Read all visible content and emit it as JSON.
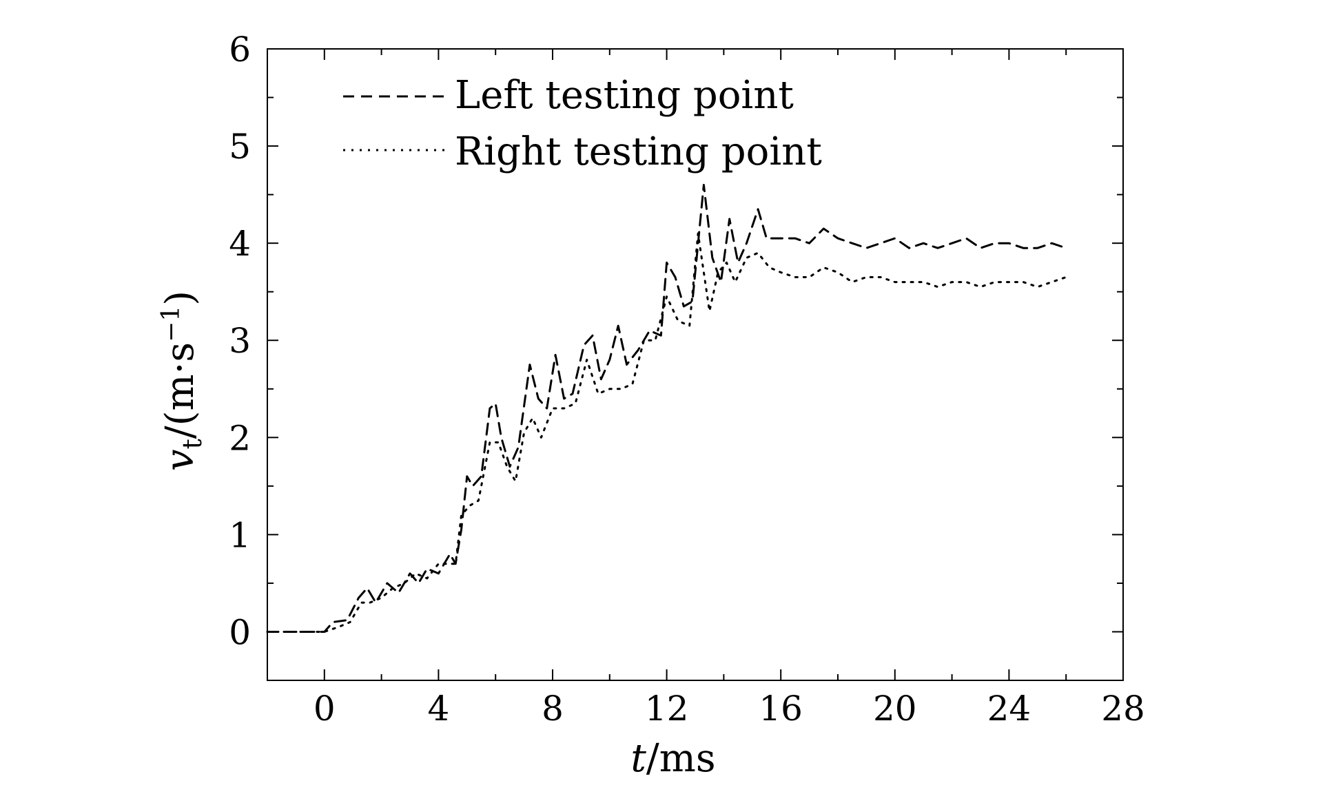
{
  "chart_data": {
    "type": "line",
    "xlabel": {
      "var": "t",
      "unit": "/ms"
    },
    "ylabel": {
      "var": "v",
      "sub": "t",
      "unit_pre": "/(m·s",
      "sup": "−1",
      "unit_post": ")"
    },
    "xlim": [
      -2.0,
      28
    ],
    "ylim": [
      -0.5,
      6
    ],
    "xticks": [
      0,
      4,
      8,
      12,
      16,
      20,
      24,
      28
    ],
    "yticks": [
      0,
      1,
      2,
      3,
      4,
      5,
      6
    ],
    "grid": false,
    "legend_position": "top-left",
    "series": [
      {
        "name": "Left testing point",
        "style": "dashed",
        "color": "#000000",
        "points": [
          [
            -2.0,
            0
          ],
          [
            0,
            0
          ],
          [
            0.3,
            0.1
          ],
          [
            0.8,
            0.12
          ],
          [
            1.2,
            0.35
          ],
          [
            1.5,
            0.45
          ],
          [
            1.8,
            0.3
          ],
          [
            2.2,
            0.5
          ],
          [
            2.6,
            0.4
          ],
          [
            3.0,
            0.6
          ],
          [
            3.3,
            0.5
          ],
          [
            3.6,
            0.65
          ],
          [
            4.0,
            0.6
          ],
          [
            4.4,
            0.8
          ],
          [
            4.6,
            0.7
          ],
          [
            4.8,
            1.05
          ],
          [
            5.0,
            1.6
          ],
          [
            5.2,
            1.5
          ],
          [
            5.5,
            1.6
          ],
          [
            5.8,
            2.3
          ],
          [
            6.0,
            2.35
          ],
          [
            6.2,
            2.0
          ],
          [
            6.5,
            1.7
          ],
          [
            6.8,
            1.9
          ],
          [
            7.2,
            2.75
          ],
          [
            7.5,
            2.4
          ],
          [
            7.8,
            2.3
          ],
          [
            8.1,
            2.85
          ],
          [
            8.4,
            2.4
          ],
          [
            8.7,
            2.45
          ],
          [
            9.1,
            2.95
          ],
          [
            9.4,
            3.05
          ],
          [
            9.7,
            2.6
          ],
          [
            10.0,
            2.8
          ],
          [
            10.3,
            3.15
          ],
          [
            10.6,
            2.75
          ],
          [
            11.0,
            2.9
          ],
          [
            11.4,
            3.1
          ],
          [
            11.8,
            3.05
          ],
          [
            12.0,
            3.8
          ],
          [
            12.3,
            3.65
          ],
          [
            12.6,
            3.35
          ],
          [
            12.9,
            3.4
          ],
          [
            13.3,
            4.6
          ],
          [
            13.6,
            3.85
          ],
          [
            13.9,
            3.6
          ],
          [
            14.2,
            4.25
          ],
          [
            14.5,
            3.8
          ],
          [
            14.8,
            4.0
          ],
          [
            15.2,
            4.35
          ],
          [
            15.5,
            4.05
          ],
          [
            16.0,
            4.05
          ],
          [
            16.5,
            4.05
          ],
          [
            17.0,
            4.0
          ],
          [
            17.5,
            4.15
          ],
          [
            18.0,
            4.05
          ],
          [
            18.5,
            4.0
          ],
          [
            19.0,
            3.95
          ],
          [
            19.5,
            4.0
          ],
          [
            20.0,
            4.05
          ],
          [
            20.5,
            3.95
          ],
          [
            21.0,
            4.0
          ],
          [
            21.5,
            3.95
          ],
          [
            22.0,
            4.0
          ],
          [
            22.5,
            4.05
          ],
          [
            23.0,
            3.95
          ],
          [
            23.5,
            4.0
          ],
          [
            24.0,
            4.0
          ],
          [
            24.5,
            3.95
          ],
          [
            25.0,
            3.95
          ],
          [
            25.5,
            4.0
          ],
          [
            26.0,
            3.95
          ]
        ]
      },
      {
        "name": "Right testing point",
        "style": "dotted",
        "color": "#000000",
        "points": [
          [
            -2.0,
            0
          ],
          [
            0,
            0
          ],
          [
            0.5,
            0.05
          ],
          [
            0.9,
            0.1
          ],
          [
            1.3,
            0.3
          ],
          [
            1.6,
            0.3
          ],
          [
            2.0,
            0.35
          ],
          [
            2.4,
            0.45
          ],
          [
            2.8,
            0.5
          ],
          [
            3.2,
            0.6
          ],
          [
            3.6,
            0.55
          ],
          [
            4.0,
            0.7
          ],
          [
            4.4,
            0.7
          ],
          [
            4.6,
            0.7
          ],
          [
            4.8,
            1.2
          ],
          [
            5.1,
            1.3
          ],
          [
            5.4,
            1.35
          ],
          [
            5.8,
            1.95
          ],
          [
            6.1,
            1.95
          ],
          [
            6.4,
            1.7
          ],
          [
            6.7,
            1.55
          ],
          [
            7.0,
            2.05
          ],
          [
            7.3,
            2.2
          ],
          [
            7.6,
            2.0
          ],
          [
            8.0,
            2.3
          ],
          [
            8.4,
            2.3
          ],
          [
            8.8,
            2.35
          ],
          [
            9.2,
            2.8
          ],
          [
            9.6,
            2.45
          ],
          [
            10.0,
            2.5
          ],
          [
            10.4,
            2.5
          ],
          [
            10.8,
            2.55
          ],
          [
            11.2,
            3.0
          ],
          [
            11.6,
            3.0
          ],
          [
            12.0,
            3.45
          ],
          [
            12.4,
            3.2
          ],
          [
            12.8,
            3.15
          ],
          [
            13.1,
            4.1
          ],
          [
            13.5,
            3.3
          ],
          [
            13.8,
            3.7
          ],
          [
            14.1,
            3.8
          ],
          [
            14.4,
            3.6
          ],
          [
            14.8,
            3.85
          ],
          [
            15.2,
            3.9
          ],
          [
            15.6,
            3.75
          ],
          [
            16.0,
            3.7
          ],
          [
            16.5,
            3.65
          ],
          [
            17.0,
            3.65
          ],
          [
            17.5,
            3.75
          ],
          [
            18.0,
            3.7
          ],
          [
            18.5,
            3.6
          ],
          [
            19.0,
            3.65
          ],
          [
            19.5,
            3.65
          ],
          [
            20.0,
            3.6
          ],
          [
            20.5,
            3.6
          ],
          [
            21.0,
            3.6
          ],
          [
            21.5,
            3.55
          ],
          [
            22.0,
            3.6
          ],
          [
            22.5,
            3.6
          ],
          [
            23.0,
            3.55
          ],
          [
            23.5,
            3.6
          ],
          [
            24.0,
            3.6
          ],
          [
            24.5,
            3.6
          ],
          [
            25.0,
            3.55
          ],
          [
            25.5,
            3.6
          ],
          [
            26.0,
            3.65
          ]
        ]
      }
    ]
  }
}
